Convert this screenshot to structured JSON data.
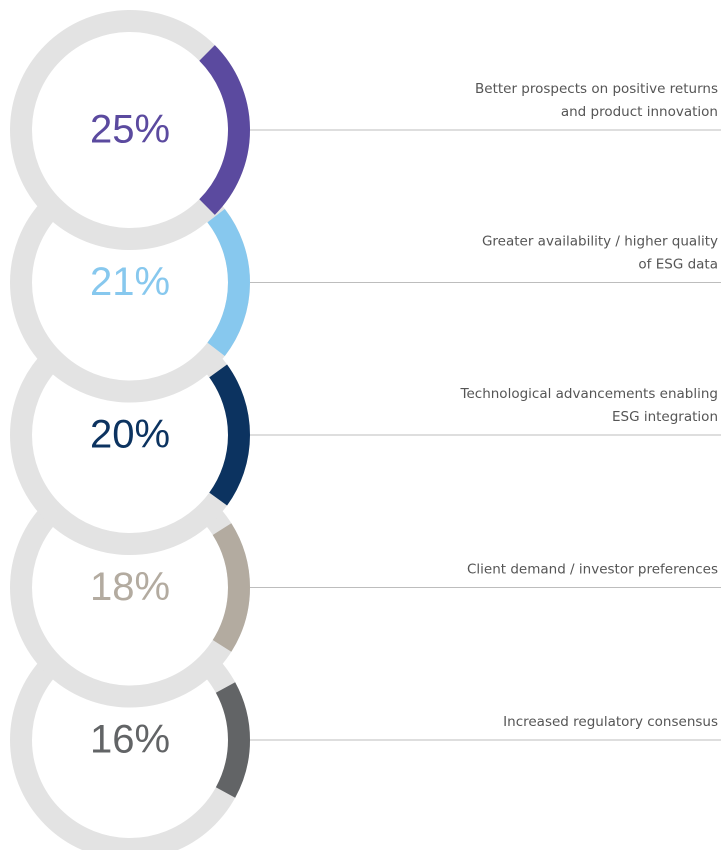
{
  "chart_data": {
    "type": "ring",
    "categories": [
      [
        "Better prospects on positive returns",
        "and product innovation"
      ],
      [
        "Greater availability / higher quality",
        "of ESG data"
      ],
      [
        "Technological advancements enabling",
        "ESG integration"
      ],
      [
        "Client demand / investor preferences"
      ],
      [
        "Increased regulatory consensus"
      ]
    ],
    "values": [
      25,
      21,
      20,
      18,
      16
    ],
    "value_labels": [
      "25%",
      "21%",
      "20%",
      "18%",
      "16%"
    ],
    "colors": [
      "#5b4a9f",
      "#87c8ee",
      "#0c3360",
      "#b3aba0",
      "#626466"
    ],
    "track_color": "#e3e3e3"
  }
}
